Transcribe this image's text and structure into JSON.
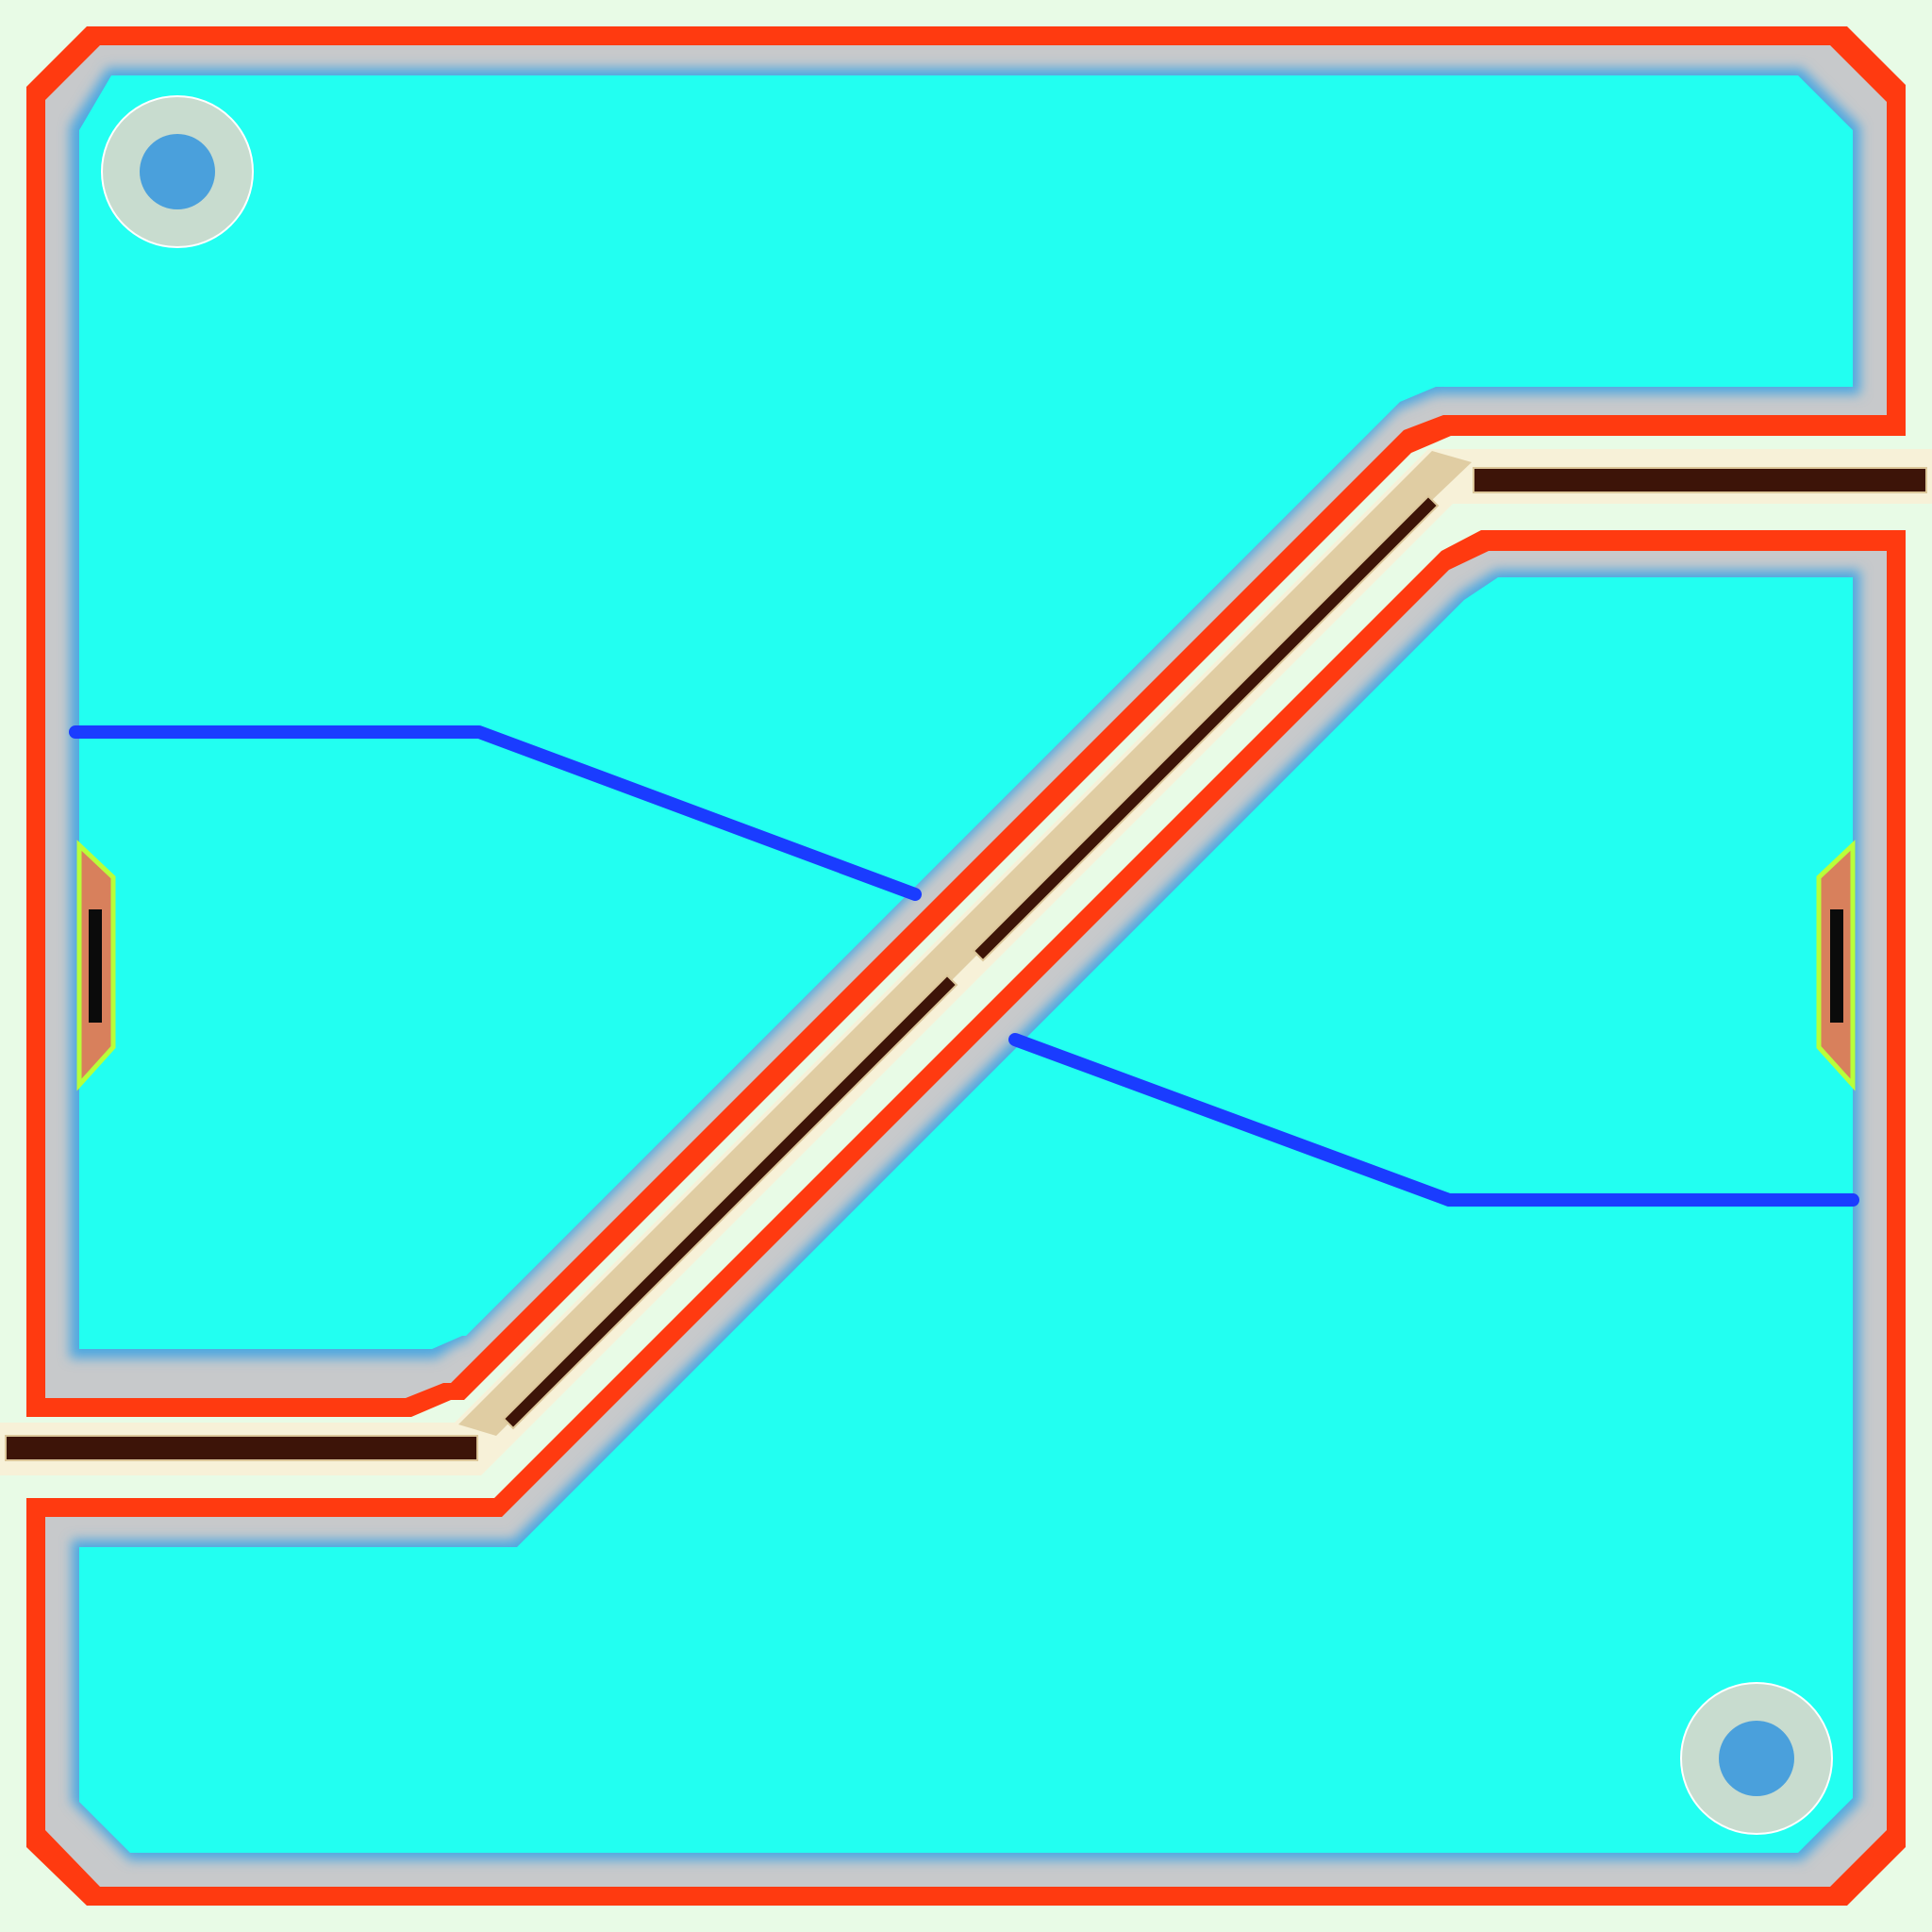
{
  "colors": {
    "background": "#e8fbe6",
    "outer_wall": "#ff3a10",
    "inner_wall": "#c7c9cb",
    "edge_glow": "#4fa8e0",
    "floor": "#22fff1",
    "channel_slot": "#3d1408",
    "channel_bed": "#f7f1d8",
    "channel_tan": "#dcc79a",
    "line_blue": "#1a3cff",
    "hole_ring": "#c8dccf",
    "hole_center": "#4aa0dc",
    "pad_outline": "#b8ff3a",
    "pad_fill": "#d8805c",
    "pad_core": "#0b0b0b"
  },
  "elements": {
    "upper_chamber": "upper-chamber",
    "lower_chamber": "lower-chamber",
    "diagonal_channel": "diagonal-channel",
    "left_port": "left-port",
    "right_port": "right-port",
    "mounting_holes": [
      "mounting-hole-top-left",
      "mounting-hole-bottom-right"
    ],
    "blue_lines": [
      "blue-line-upper",
      "blue-line-lower"
    ],
    "side_pads": [
      "side-pad-left",
      "side-pad-right"
    ]
  }
}
